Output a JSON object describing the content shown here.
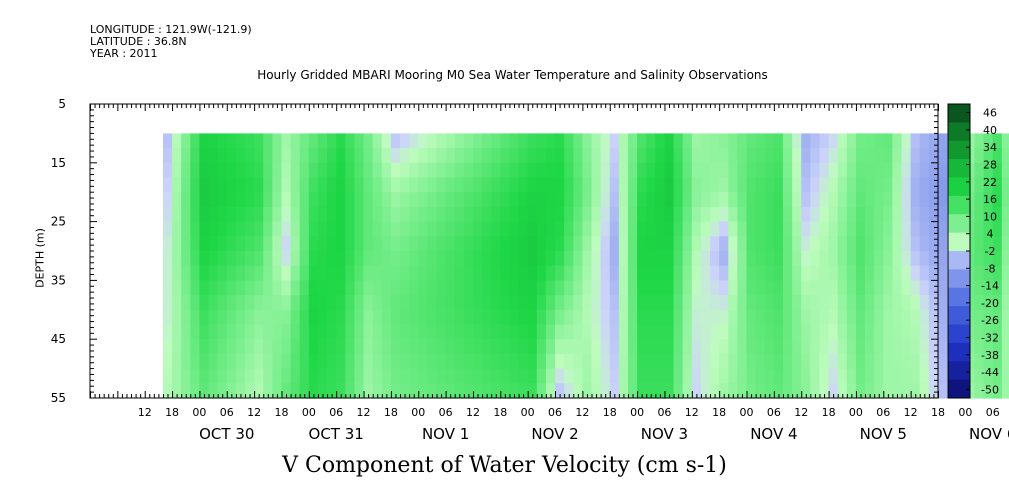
{
  "header": {
    "longitude": "LONGITUDE : 121.9W(-121.9)",
    "latitude": "LATITUDE : 36.8N",
    "year": "YEAR : 2011"
  },
  "chart_data": {
    "type": "heatmap",
    "title": "Hourly Gridded MBARI Mooring M0 Sea Water Temperature and Salinity Observations",
    "xlabel": "V Component of Water Velocity (cm s-1)",
    "ylabel": "DEPTH (m)",
    "y_reversed": true,
    "ylim": [
      5,
      55
    ],
    "y_ticks": [
      "5",
      "15",
      "25",
      "35",
      "45",
      "55"
    ],
    "x_hour_labels": [
      "12",
      "18",
      "00",
      "06",
      "12",
      "18",
      "00",
      "06",
      "12",
      "18",
      "00",
      "06",
      "12",
      "18",
      "00",
      "06",
      "12",
      "18",
      "00",
      "06",
      "12",
      "18",
      "00",
      "06",
      "12",
      "18",
      "00",
      "06",
      "12",
      "18",
      "00",
      "06"
    ],
    "x_date_labels": [
      "OCT 30",
      "OCT 31",
      "NOV  1",
      "NOV  2",
      "NOV  3",
      "NOV  4",
      "NOV  5",
      "NOV  6"
    ],
    "data_depth_range": [
      10,
      55
    ],
    "colorbar": {
      "labels": [
        "46",
        "40",
        "34",
        "28",
        "22",
        "16",
        "10",
        "4",
        "-2",
        "-8",
        "-14",
        "-20",
        "-26",
        "-32",
        "-38",
        "-44",
        "-50"
      ],
      "range": [
        -50,
        46
      ]
    },
    "time_columns": [
      {
        "time": "Oct 29 16:00",
        "v": [
          -4,
          -2,
          0,
          0,
          2
        ]
      },
      {
        "time": "Oct 30 00:00",
        "v": [
          18,
          20,
          18,
          14,
          10
        ]
      },
      {
        "time": "Oct 30 12:00",
        "v": [
          14,
          16,
          12,
          6,
          2
        ]
      },
      {
        "time": "Oct 30 18:00",
        "v": [
          4,
          2,
          -2,
          6,
          10
        ]
      },
      {
        "time": "Oct 31 00:00",
        "v": [
          10,
          14,
          16,
          18,
          16
        ]
      },
      {
        "time": "Oct 31 06:00",
        "v": [
          16,
          18,
          18,
          16,
          14
        ]
      },
      {
        "time": "Oct 31 12:00",
        "v": [
          8,
          10,
          10,
          6,
          4
        ]
      },
      {
        "time": "Oct 31 18:00",
        "v": [
          -4,
          4,
          8,
          10,
          8
        ]
      },
      {
        "time": "Nov 1 00:00",
        "v": [
          14,
          18,
          20,
          18,
          14
        ]
      },
      {
        "time": "Nov 1 06:00",
        "v": [
          16,
          18,
          16,
          8,
          -4
        ]
      },
      {
        "time": "Nov 1 12:00",
        "v": [
          6,
          8,
          4,
          2,
          4
        ]
      },
      {
        "time": "Nov 1 18:00",
        "v": [
          -2,
          -4,
          -6,
          -4,
          -2
        ]
      },
      {
        "time": "Nov 2 00:00",
        "v": [
          12,
          16,
          18,
          16,
          14
        ]
      },
      {
        "time": "Nov 2 06:00",
        "v": [
          18,
          20,
          18,
          16,
          14
        ]
      },
      {
        "time": "Nov 2 12:00",
        "v": [
          4,
          6,
          2,
          0,
          -2
        ]
      },
      {
        "time": "Nov 2 18:00",
        "v": [
          6,
          4,
          -6,
          0,
          4
        ]
      },
      {
        "time": "Nov 3 00:00",
        "v": [
          10,
          12,
          12,
          10,
          8
        ]
      },
      {
        "time": "Nov 3 06:00",
        "v": [
          12,
          14,
          14,
          12,
          10
        ]
      },
      {
        "time": "Nov 3 12:00",
        "v": [
          -6,
          -4,
          0,
          4,
          6
        ]
      },
      {
        "time": "Nov 3 18:00",
        "v": [
          -2,
          2,
          4,
          2,
          -2
        ]
      },
      {
        "time": "Nov 4 00:00",
        "v": [
          8,
          10,
          12,
          10,
          8
        ]
      },
      {
        "time": "Nov 4 06:00",
        "v": [
          10,
          8,
          6,
          4,
          4
        ]
      },
      {
        "time": "Nov 4 12:00",
        "v": [
          -4,
          -6,
          -4,
          2,
          4
        ]
      },
      {
        "time": "Nov 4 18:00",
        "v": [
          -8,
          -10,
          -8,
          -6,
          -4
        ]
      },
      {
        "time": "Nov 5 00:00",
        "v": [
          4,
          8,
          10,
          8,
          4
        ]
      },
      {
        "time": "Nov 5 06:00",
        "v": [
          12,
          16,
          14,
          10,
          8
        ]
      },
      {
        "time": "Nov 5 12:00",
        "v": [
          -6,
          -8,
          -10,
          -8,
          -4
        ]
      },
      {
        "time": "Nov 5 18:00",
        "v": [
          -8,
          -6,
          -4,
          2,
          4
        ]
      },
      {
        "time": "Nov 6 00:00",
        "v": [
          0,
          2,
          4,
          0,
          -4
        ]
      },
      {
        "time": "Nov 6 06:00",
        "v": [
          -4,
          -6,
          -4,
          -2,
          -6
        ]
      },
      {
        "time": "Nov 6 10:00",
        "v": [
          2,
          4,
          2,
          -2,
          -6
        ]
      }
    ]
  }
}
